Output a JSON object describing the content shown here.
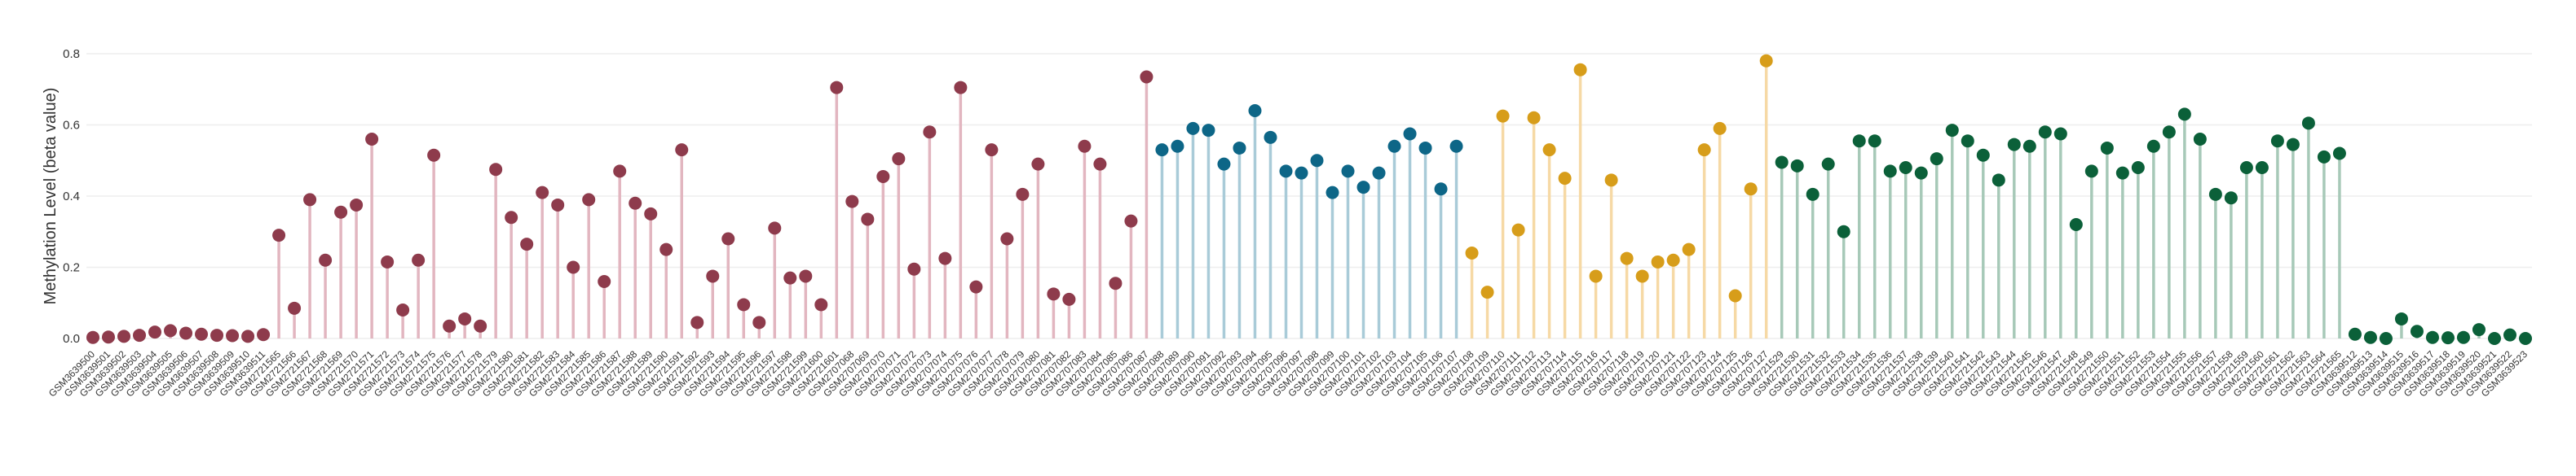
{
  "chart_data": {
    "type": "lollipop",
    "title": "",
    "xlabel": "",
    "ylabel": "Methylation Level (beta value)",
    "ylim": [
      0,
      0.8
    ],
    "yticks": [
      "0.0",
      "0.2",
      "0.4",
      "0.6",
      "0.8"
    ],
    "grid": true,
    "legend": "none",
    "colors": {
      "group1": "#8e3b4c",
      "group1_stem": "#e2b6c0",
      "group2": "#0d6687",
      "group2_stem": "#a9cbd8",
      "group3": "#d79d1a",
      "group3_stem": "#f6d9a5",
      "group4": "#0b6039",
      "group4_stem": "#a7c9b8",
      "grid": "#eeeeee",
      "axis_text": "#333333"
    },
    "series": [
      {
        "group": "group1",
        "points": [
          [
            "GSM3639500",
            0.003
          ],
          [
            "GSM3639501",
            0.004
          ],
          [
            "GSM3639502",
            0.006
          ],
          [
            "GSM3639503",
            0.009
          ],
          [
            "GSM3639504",
            0.018
          ],
          [
            "GSM3639505",
            0.022
          ],
          [
            "GSM3639506",
            0.015
          ],
          [
            "GSM3639507",
            0.012
          ],
          [
            "GSM3639508",
            0.009
          ],
          [
            "GSM3639509",
            0.008
          ],
          [
            "GSM3639510",
            0.006
          ],
          [
            "GSM3639511",
            0.011
          ],
          [
            "GSM2721565",
            0.29
          ],
          [
            "GSM2721566",
            0.085
          ],
          [
            "GSM2721567",
            0.39
          ],
          [
            "GSM2721568",
            0.22
          ],
          [
            "GSM2721569",
            0.355
          ],
          [
            "GSM2721570",
            0.375
          ],
          [
            "GSM2721571",
            0.56
          ],
          [
            "GSM2721572",
            0.215
          ],
          [
            "GSM2721573",
            0.08
          ],
          [
            "GSM2721574",
            0.22
          ],
          [
            "GSM2721575",
            0.515
          ],
          [
            "GSM2721576",
            0.035
          ],
          [
            "GSM2721577",
            0.055
          ],
          [
            "GSM2721578",
            0.035
          ],
          [
            "GSM2721579",
            0.475
          ],
          [
            "GSM2721580",
            0.34
          ],
          [
            "GSM2721581",
            0.265
          ],
          [
            "GSM2721582",
            0.41
          ],
          [
            "GSM2721583",
            0.375
          ],
          [
            "GSM2721584",
            0.2
          ],
          [
            "GSM2721585",
            0.39
          ],
          [
            "GSM2721586",
            0.16
          ],
          [
            "GSM2721587",
            0.47
          ],
          [
            "GSM2721588",
            0.38
          ],
          [
            "GSM2721589",
            0.35
          ],
          [
            "GSM2721590",
            0.25
          ],
          [
            "GSM2721591",
            0.53
          ],
          [
            "GSM2721592",
            0.045
          ],
          [
            "GSM2721593",
            0.175
          ],
          [
            "GSM2721594",
            0.28
          ],
          [
            "GSM2721595",
            0.095
          ],
          [
            "GSM2721596",
            0.045
          ],
          [
            "GSM2721597",
            0.31
          ],
          [
            "GSM2721598",
            0.17
          ],
          [
            "GSM2721599",
            0.175
          ],
          [
            "GSM2721600",
            0.095
          ],
          [
            "GSM2721601",
            0.705
          ],
          [
            "GSM2707068",
            0.385
          ],
          [
            "GSM2707069",
            0.335
          ],
          [
            "GSM2707070",
            0.455
          ],
          [
            "GSM2707071",
            0.505
          ],
          [
            "GSM2707072",
            0.195
          ],
          [
            "GSM2707073",
            0.58
          ],
          [
            "GSM2707074",
            0.225
          ],
          [
            "GSM2707075",
            0.705
          ],
          [
            "GSM2707076",
            0.145
          ],
          [
            "GSM2707077",
            0.53
          ],
          [
            "GSM2707078",
            0.28
          ],
          [
            "GSM2707079",
            0.405
          ],
          [
            "GSM2707080",
            0.49
          ],
          [
            "GSM2707081",
            0.125
          ],
          [
            "GSM2707082",
            0.11
          ],
          [
            "GSM2707083",
            0.54
          ],
          [
            "GSM2707084",
            0.49
          ],
          [
            "GSM2707085",
            0.155
          ],
          [
            "GSM2707086",
            0.33
          ],
          [
            "GSM2707087",
            0.735
          ]
        ]
      },
      {
        "group": "group2",
        "points": [
          [
            "GSM2707088",
            0.53
          ],
          [
            "GSM2707089",
            0.54
          ],
          [
            "GSM2707090",
            0.59
          ],
          [
            "GSM2707091",
            0.585
          ],
          [
            "GSM2707092",
            0.49
          ],
          [
            "GSM2707093",
            0.535
          ],
          [
            "GSM2707094",
            0.64
          ],
          [
            "GSM2707095",
            0.565
          ],
          [
            "GSM2707096",
            0.47
          ],
          [
            "GSM2707097",
            0.465
          ],
          [
            "GSM2707098",
            0.5
          ],
          [
            "GSM2707099",
            0.41
          ],
          [
            "GSM2707100",
            0.47
          ],
          [
            "GSM2707101",
            0.425
          ],
          [
            "GSM2707102",
            0.465
          ],
          [
            "GSM2707103",
            0.54
          ],
          [
            "GSM2707104",
            0.575
          ],
          [
            "GSM2707105",
            0.535
          ],
          [
            "GSM2707106",
            0.42
          ],
          [
            "GSM2707107",
            0.54
          ]
        ]
      },
      {
        "group": "group3",
        "points": [
          [
            "GSM2707108",
            0.24
          ],
          [
            "GSM2707109",
            0.13
          ],
          [
            "GSM2707110",
            0.625
          ],
          [
            "GSM2707111",
            0.305
          ],
          [
            "GSM2707112",
            0.62
          ],
          [
            "GSM2707113",
            0.53
          ],
          [
            "GSM2707114",
            0.45
          ],
          [
            "GSM2707115",
            0.755
          ],
          [
            "GSM2707116",
            0.175
          ],
          [
            "GSM2707117",
            0.445
          ],
          [
            "GSM2707118",
            0.225
          ],
          [
            "GSM2707119",
            0.175
          ],
          [
            "GSM2707120",
            0.215
          ],
          [
            "GSM2707121",
            0.22
          ],
          [
            "GSM2707122",
            0.25
          ],
          [
            "GSM2707123",
            0.53
          ],
          [
            "GSM2707124",
            0.59
          ],
          [
            "GSM2707125",
            0.12
          ],
          [
            "GSM2707126",
            0.42
          ],
          [
            "GSM2707127",
            0.78
          ]
        ]
      },
      {
        "group": "group4",
        "points": [
          [
            "GSM2721529",
            0.495
          ],
          [
            "GSM2721530",
            0.485
          ],
          [
            "GSM2721531",
            0.405
          ],
          [
            "GSM2721532",
            0.49
          ],
          [
            "GSM2721533",
            0.3
          ],
          [
            "GSM2721534",
            0.555
          ],
          [
            "GSM2721535",
            0.555
          ],
          [
            "GSM2721536",
            0.47
          ],
          [
            "GSM2721537",
            0.48
          ],
          [
            "GSM2721538",
            0.465
          ],
          [
            "GSM2721539",
            0.505
          ],
          [
            "GSM2721540",
            0.585
          ],
          [
            "GSM2721541",
            0.555
          ],
          [
            "GSM2721542",
            0.515
          ],
          [
            "GSM2721543",
            0.445
          ],
          [
            "GSM2721544",
            0.545
          ],
          [
            "GSM2721545",
            0.54
          ],
          [
            "GSM2721546",
            0.58
          ],
          [
            "GSM2721547",
            0.575
          ],
          [
            "GSM2721548",
            0.32
          ],
          [
            "GSM2721549",
            0.47
          ],
          [
            "GSM2721550",
            0.535
          ],
          [
            "GSM2721551",
            0.465
          ],
          [
            "GSM2721552",
            0.48
          ],
          [
            "GSM2721553",
            0.54
          ],
          [
            "GSM2721554",
            0.58
          ],
          [
            "GSM2721555",
            0.63
          ],
          [
            "GSM2721556",
            0.56
          ],
          [
            "GSM2721557",
            0.405
          ],
          [
            "GSM2721558",
            0.395
          ],
          [
            "GSM2721559",
            0.48
          ],
          [
            "GSM2721560",
            0.48
          ],
          [
            "GSM2721561",
            0.555
          ],
          [
            "GSM2721562",
            0.545
          ],
          [
            "GSM2721563",
            0.605
          ],
          [
            "GSM2721564",
            0.51
          ],
          [
            "GSM2721565",
            0.52
          ],
          [
            "GSM3639512",
            0.012
          ],
          [
            "GSM3639513",
            0.003
          ],
          [
            "GSM3639514",
            0.0
          ],
          [
            "GSM3639515",
            0.055
          ],
          [
            "GSM3639516",
            0.02
          ],
          [
            "GSM3639517",
            0.003
          ],
          [
            "GSM3639518",
            0.002
          ],
          [
            "GSM3639519",
            0.003
          ],
          [
            "GSM3639520",
            0.025
          ],
          [
            "GSM3639521",
            0.0
          ],
          [
            "GSM3639522",
            0.01
          ],
          [
            "GSM3639523",
            0.0
          ]
        ]
      }
    ]
  }
}
